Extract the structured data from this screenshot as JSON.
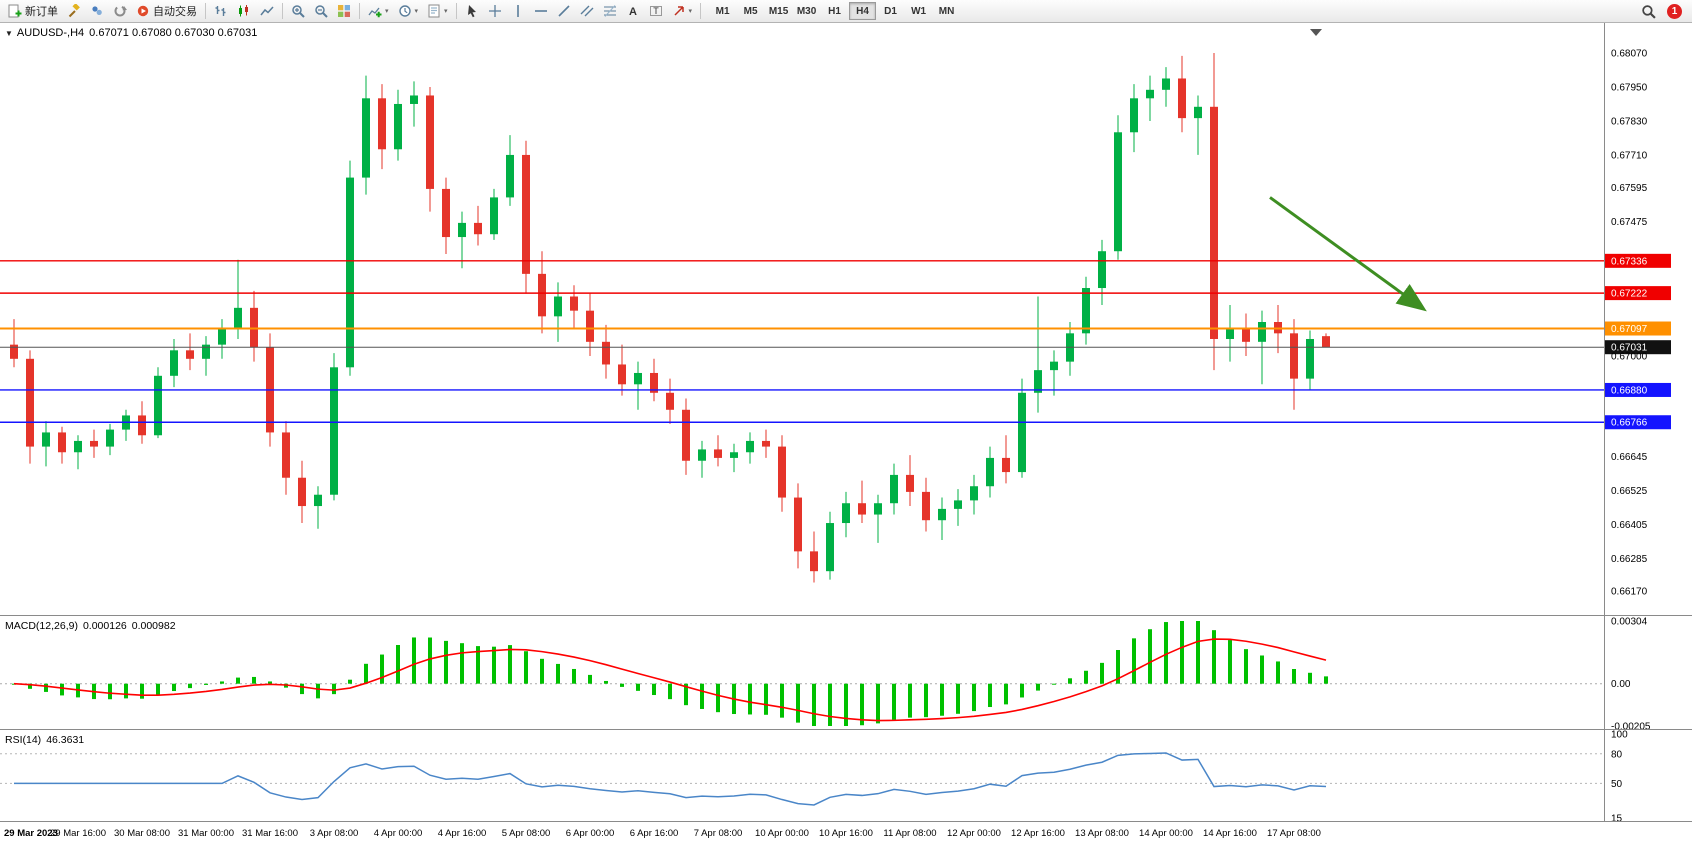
{
  "toolbar": {
    "new_order_label": "新订单",
    "auto_trading_label": "自动交易",
    "timeframes": [
      "M1",
      "M5",
      "M15",
      "M30",
      "H1",
      "H4",
      "D1",
      "W1",
      "MN"
    ],
    "active_timeframe": "H4",
    "notification_count": "1",
    "tools": [
      "new-order",
      "metaeditor",
      "profiles",
      "refresh",
      "auto-trading",
      "bar-chart",
      "candlestick-chart",
      "line-chart",
      "zoom-in",
      "zoom-out",
      "tile-windows",
      "indicators",
      "periods",
      "templates",
      "cursor",
      "crosshair",
      "vertical-line",
      "horizontal-line",
      "trendline",
      "equidistant-channel",
      "fibonacci-retracement",
      "text",
      "text-label",
      "arrows",
      "search"
    ]
  },
  "chart": {
    "symbol_period": "AUDUSD-,H4",
    "ohlc_text": "0.67071 0.67080 0.67030 0.67031"
  },
  "chart_data": {
    "type": "candlestick",
    "symbol": "AUDUSD",
    "period": "H4",
    "up_color": "#00b045",
    "down_color": "#e5342a",
    "current_ohlc": {
      "open": "0.67071",
      "high": "0.67080",
      "low": "0.67030",
      "close": "0.67031"
    },
    "y_axis": {
      "max": 0.6807,
      "min": 0.6617,
      "ticks": [
        0.6807,
        0.6795,
        0.6783,
        0.6771,
        0.67595,
        0.67475,
        0.67,
        0.66645,
        0.66525,
        0.66405,
        0.66285,
        0.6617
      ]
    },
    "x_axis_labels": [
      "29 Mar 2023",
      "29 Mar 16:00",
      "30 Mar 08:00",
      "31 Mar 00:00",
      "31 Mar 16:00",
      "3 Apr 08:00",
      "4 Apr 00:00",
      "4 Apr 16:00",
      "5 Apr 08:00",
      "6 Apr 00:00",
      "6 Apr 16:00",
      "7 Apr 08:00",
      "10 Apr 00:00",
      "10 Apr 16:00",
      "11 Apr 08:00",
      "12 Apr 00:00",
      "12 Apr 16:00",
      "13 Apr 08:00",
      "14 Apr 00:00",
      "14 Apr 16:00",
      "17 Apr 08:00"
    ],
    "candles": [
      [
        0.6704,
        0.6713,
        0.6696,
        0.6699
      ],
      [
        0.6699,
        0.6702,
        0.6662,
        0.6668
      ],
      [
        0.6668,
        0.6677,
        0.6661,
        0.6673
      ],
      [
        0.6673,
        0.6675,
        0.6662,
        0.6666
      ],
      [
        0.6666,
        0.6672,
        0.666,
        0.667
      ],
      [
        0.667,
        0.6674,
        0.6664,
        0.6668
      ],
      [
        0.6668,
        0.6676,
        0.6665,
        0.6674
      ],
      [
        0.6674,
        0.6681,
        0.667,
        0.6679
      ],
      [
        0.6679,
        0.6684,
        0.6669,
        0.6672
      ],
      [
        0.6672,
        0.6696,
        0.6671,
        0.6693
      ],
      [
        0.6693,
        0.6706,
        0.6689,
        0.6702
      ],
      [
        0.6702,
        0.6708,
        0.6695,
        0.6699
      ],
      [
        0.6699,
        0.6707,
        0.6693,
        0.6704
      ],
      [
        0.6704,
        0.6713,
        0.6699,
        0.671
      ],
      [
        0.671,
        0.6734,
        0.6706,
        0.6717
      ],
      [
        0.6717,
        0.6723,
        0.6698,
        0.6703
      ],
      [
        0.6703,
        0.6708,
        0.6668,
        0.6673
      ],
      [
        0.6673,
        0.6677,
        0.6651,
        0.6657
      ],
      [
        0.6657,
        0.6663,
        0.6641,
        0.6647
      ],
      [
        0.6647,
        0.6654,
        0.6639,
        0.6651
      ],
      [
        0.6651,
        0.6701,
        0.6649,
        0.6696
      ],
      [
        0.6696,
        0.6769,
        0.6693,
        0.6763
      ],
      [
        0.6763,
        0.6799,
        0.6757,
        0.6791
      ],
      [
        0.6791,
        0.6796,
        0.6766,
        0.6773
      ],
      [
        0.6773,
        0.6794,
        0.6769,
        0.6789
      ],
      [
        0.6789,
        0.6797,
        0.6781,
        0.6792
      ],
      [
        0.6792,
        0.6795,
        0.6751,
        0.6759
      ],
      [
        0.6759,
        0.6763,
        0.6736,
        0.6742
      ],
      [
        0.6742,
        0.6751,
        0.6731,
        0.6747
      ],
      [
        0.6747,
        0.6753,
        0.6739,
        0.6743
      ],
      [
        0.6743,
        0.6759,
        0.6741,
        0.6756
      ],
      [
        0.6756,
        0.6778,
        0.6753,
        0.6771
      ],
      [
        0.6771,
        0.6776,
        0.6722,
        0.6729
      ],
      [
        0.6729,
        0.6737,
        0.6708,
        0.6714
      ],
      [
        0.6714,
        0.6726,
        0.6705,
        0.6721
      ],
      [
        0.6721,
        0.6725,
        0.671,
        0.6716
      ],
      [
        0.6716,
        0.6722,
        0.67,
        0.6705
      ],
      [
        0.6705,
        0.6711,
        0.6692,
        0.6697
      ],
      [
        0.6697,
        0.6704,
        0.6686,
        0.669
      ],
      [
        0.669,
        0.6698,
        0.6681,
        0.6694
      ],
      [
        0.6694,
        0.6699,
        0.6684,
        0.6687
      ],
      [
        0.6687,
        0.6692,
        0.6676,
        0.6681
      ],
      [
        0.6681,
        0.6685,
        0.6658,
        0.6663
      ],
      [
        0.6663,
        0.667,
        0.6657,
        0.6667
      ],
      [
        0.6667,
        0.6672,
        0.6661,
        0.6664
      ],
      [
        0.6664,
        0.6669,
        0.6659,
        0.6666
      ],
      [
        0.6666,
        0.6673,
        0.6662,
        0.667
      ],
      [
        0.667,
        0.6674,
        0.6664,
        0.6668
      ],
      [
        0.6668,
        0.6672,
        0.6645,
        0.665
      ],
      [
        0.665,
        0.6655,
        0.6625,
        0.6631
      ],
      [
        0.6631,
        0.6638,
        0.662,
        0.6624
      ],
      [
        0.6624,
        0.6645,
        0.6621,
        0.6641
      ],
      [
        0.6641,
        0.6652,
        0.6636,
        0.6648
      ],
      [
        0.6648,
        0.6656,
        0.6641,
        0.6644
      ],
      [
        0.6644,
        0.6651,
        0.6634,
        0.6648
      ],
      [
        0.6648,
        0.6662,
        0.6644,
        0.6658
      ],
      [
        0.6658,
        0.6665,
        0.6647,
        0.6652
      ],
      [
        0.6652,
        0.6657,
        0.6638,
        0.6642
      ],
      [
        0.6642,
        0.665,
        0.6635,
        0.6646
      ],
      [
        0.6646,
        0.6653,
        0.664,
        0.6649
      ],
      [
        0.6649,
        0.6658,
        0.6644,
        0.6654
      ],
      [
        0.6654,
        0.6668,
        0.665,
        0.6664
      ],
      [
        0.6664,
        0.6672,
        0.6655,
        0.6659
      ],
      [
        0.6659,
        0.6692,
        0.6657,
        0.6687
      ],
      [
        0.6687,
        0.6721,
        0.668,
        0.6695
      ],
      [
        0.6695,
        0.6702,
        0.6686,
        0.6698
      ],
      [
        0.6698,
        0.6712,
        0.6693,
        0.6708
      ],
      [
        0.6708,
        0.6728,
        0.6704,
        0.6724
      ],
      [
        0.6724,
        0.6741,
        0.6718,
        0.6737
      ],
      [
        0.6737,
        0.6785,
        0.6734,
        0.6779
      ],
      [
        0.6779,
        0.6796,
        0.6772,
        0.6791
      ],
      [
        0.6791,
        0.6799,
        0.6783,
        0.6794
      ],
      [
        0.6794,
        0.6802,
        0.6788,
        0.6798
      ],
      [
        0.6798,
        0.6806,
        0.6779,
        0.6784
      ],
      [
        0.6784,
        0.6792,
        0.6771,
        0.6788
      ],
      [
        0.6788,
        0.6807,
        0.6695,
        0.6706
      ],
      [
        0.6706,
        0.6718,
        0.6698,
        0.671
      ],
      [
        0.671,
        0.6715,
        0.67,
        0.6705
      ],
      [
        0.6705,
        0.6716,
        0.669,
        0.6712
      ],
      [
        0.6712,
        0.6718,
        0.6701,
        0.6708
      ],
      [
        0.6708,
        0.6713,
        0.6681,
        0.6692
      ],
      [
        0.6692,
        0.6709,
        0.6688,
        0.6706
      ],
      [
        0.6707,
        0.6708,
        0.6703,
        0.6703
      ]
    ],
    "horizontal_lines": [
      {
        "price": 0.67336,
        "label": "0.67336",
        "color": "#f00000",
        "width": 1.4
      },
      {
        "price": 0.67222,
        "label": "0.67222",
        "color": "#f00000",
        "width": 1.4
      },
      {
        "price": 0.67097,
        "label": "0.67097",
        "color": "#ff9000",
        "width": 2
      },
      {
        "price": 0.67031,
        "label": "0.67031",
        "color": "#555555",
        "width": 1,
        "tag_color": "#111111"
      },
      {
        "price": 0.6688,
        "label": "0.66880",
        "color": "#1414ff",
        "width": 1.4
      },
      {
        "price": 0.66766,
        "label": "0.66766",
        "color": "#1414ff",
        "width": 1.4
      }
    ],
    "arrow": {
      "from_bar": 78.5,
      "from_price": 0.6756,
      "to_bar": 88,
      "to_price": 0.6717,
      "color": "#3e8e22"
    },
    "macd": {
      "label": "MACD(12,26,9)",
      "main_value": "0.000126",
      "signal_value": "0.000982",
      "params": [
        12,
        26,
        9
      ],
      "axis_max": 0.00304,
      "axis_min": -0.00205,
      "axis_ticks": [
        "0.00304",
        "0.00",
        "-0.00205"
      ],
      "histogram_color": "#00c000",
      "signal_color": "#ff0000"
    },
    "rsi": {
      "label": "RSI(14)",
      "value": "46.3631",
      "period": 14,
      "axis_ticks": [
        100,
        80,
        50,
        15
      ],
      "dashed_levels": [
        80,
        50
      ],
      "axis_min": 15,
      "line_color": "#4a86c8"
    }
  }
}
